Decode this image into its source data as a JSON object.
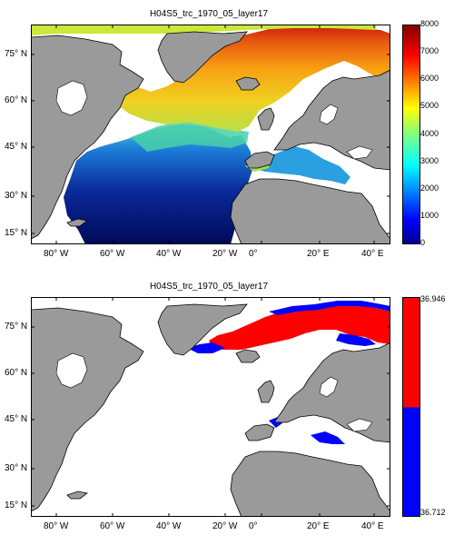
{
  "chart_data": [
    {
      "type": "heatmap",
      "title": "H04S5_trc_1970_05_layer17",
      "x_ticks": [
        "80° W",
        "60° W",
        "40° W",
        "20° W",
        "0°",
        "20° E",
        "40° E"
      ],
      "y_ticks": [
        "75° N",
        "60° N",
        "45° N",
        "30° N",
        "15° N"
      ],
      "colorbar": {
        "ticks": [
          "8000",
          "7000",
          "6000",
          "5000",
          "4000",
          "3000",
          "2000",
          "1000",
          "0"
        ],
        "range": [
          0,
          8000
        ],
        "colormap": "jet"
      },
      "colors": {
        "land": "#9a9a9a",
        "ocean_nodata": "#ffffff"
      }
    },
    {
      "type": "heatmap",
      "title": "H04S5_trc_1970_05_layer17",
      "x_ticks": [
        "80° W",
        "60° W",
        "40° W",
        "20° W",
        "0°",
        "20° E",
        "40° E"
      ],
      "y_ticks": [
        "75° N",
        "60° N",
        "45° N",
        "30° N",
        "15° N"
      ],
      "colorbar": {
        "top_label": "36.946",
        "bottom_label": "36.712",
        "range": [
          36.712,
          36.946
        ],
        "colors": {
          "high": "#ff0000",
          "low": "#0000ff"
        }
      },
      "colors": {
        "land": "#9a9a9a",
        "ocean_nodata": "#ffffff"
      }
    }
  ]
}
